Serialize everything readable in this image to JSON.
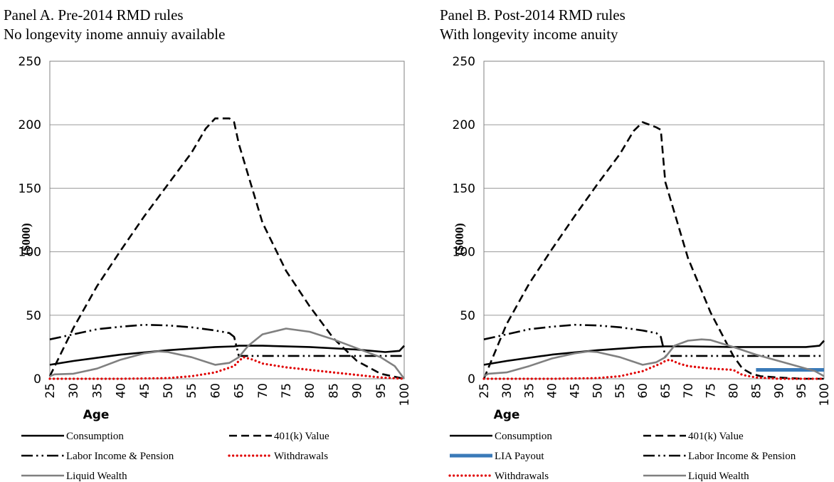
{
  "chart_data": [
    {
      "type": "line",
      "title": "Panel A. Pre-2014 RMD rules",
      "subtitle": "No longevity inome annuiy available",
      "xlabel": "Age",
      "ylabel": "($000)",
      "ylim": [
        0,
        250
      ],
      "yticks": [
        0,
        50,
        100,
        150,
        200,
        250
      ],
      "xlim": [
        25,
        100
      ],
      "xticks": [
        25,
        30,
        35,
        40,
        45,
        50,
        55,
        60,
        65,
        70,
        75,
        80,
        85,
        90,
        95,
        100
      ],
      "grid": true,
      "legend_placement": "bottom",
      "series": [
        {
          "name": "Consumption",
          "color": "#000000",
          "dash": "solid",
          "x": [
            25,
            30,
            40,
            50,
            60,
            64,
            65,
            70,
            80,
            90,
            96,
            99,
            100
          ],
          "y": [
            11,
            14,
            19,
            22.5,
            25,
            25.5,
            26,
            26,
            25,
            23,
            21,
            22,
            26
          ]
        },
        {
          "name": "401(k) Value",
          "color": "#000000",
          "dash": "dashed",
          "x": [
            25,
            30,
            35,
            40,
            45,
            50,
            55,
            58,
            60,
            63,
            64,
            65,
            70,
            75,
            80,
            85,
            90,
            95,
            100
          ],
          "y": [
            2,
            40,
            73,
            101,
            128,
            153,
            178,
            197,
            205,
            205,
            202,
            185,
            123,
            85,
            57,
            32,
            14,
            4,
            0
          ]
        },
        {
          "name": "Labor Income & Pension",
          "color": "#000000",
          "dash": "dashdotdot",
          "x": [
            25,
            30,
            35,
            40,
            45,
            50,
            55,
            60,
            63,
            64,
            65,
            70,
            80,
            90,
            100
          ],
          "y": [
            31,
            35,
            39,
            41,
            42.5,
            42,
            40.5,
            38,
            36,
            33,
            18,
            18,
            18,
            18,
            18
          ]
        },
        {
          "name": "Withdrawals",
          "color": "#e00000",
          "dash": "dotted",
          "x": [
            25,
            40,
            50,
            55,
            60,
            64,
            65,
            66,
            68,
            70,
            75,
            80,
            85,
            90,
            95,
            100
          ],
          "y": [
            0,
            0,
            0.5,
            2,
            5,
            10,
            14,
            17,
            15,
            12,
            9,
            7,
            5,
            3,
            1,
            0
          ]
        },
        {
          "name": "Liquid Wealth",
          "color": "#808080",
          "dash": "solid",
          "x": [
            25,
            26,
            30,
            35,
            40,
            45,
            48,
            50,
            55,
            60,
            63,
            65,
            67,
            70,
            75,
            80,
            85,
            90,
            95,
            98,
            99,
            100
          ],
          "y": [
            2,
            3.5,
            4,
            8,
            15,
            20,
            21.5,
            21,
            17,
            11,
            12.5,
            17,
            26,
            35,
            39.5,
            37,
            31,
            24,
            17,
            10,
            5,
            0
          ]
        }
      ]
    },
    {
      "type": "line",
      "title": "Panel B. Post-2014 RMD rules",
      "subtitle": "With longevity income anuity",
      "xlabel": "Age",
      "ylabel": "($000)",
      "ylim": [
        0,
        250
      ],
      "yticks": [
        0,
        50,
        100,
        150,
        200,
        250
      ],
      "xlim": [
        25,
        100
      ],
      "xticks": [
        25,
        30,
        35,
        40,
        45,
        50,
        55,
        60,
        65,
        70,
        75,
        80,
        85,
        90,
        95,
        100
      ],
      "grid": true,
      "legend_placement": "bottom",
      "series": [
        {
          "name": "Consumption",
          "color": "#000000",
          "dash": "solid",
          "x": [
            25,
            30,
            40,
            50,
            60,
            65,
            70,
            80,
            85,
            90,
            96,
            99,
            100
          ],
          "y": [
            11,
            14,
            19,
            22.5,
            25,
            25.5,
            25.5,
            25,
            25,
            25,
            25,
            26,
            30
          ]
        },
        {
          "name": "401(k) Value",
          "color": "#000000",
          "dash": "dashed",
          "x": [
            25,
            30,
            35,
            40,
            45,
            50,
            55,
            58,
            60,
            63,
            64,
            65,
            70,
            75,
            80,
            82,
            84,
            86,
            90,
            95,
            100
          ],
          "y": [
            0,
            43,
            75,
            102,
            128,
            153,
            177,
            195,
            202,
            198,
            196,
            155,
            95,
            52,
            18,
            8,
            4,
            2,
            1,
            0,
            0
          ]
        },
        {
          "name": "LIA Payout",
          "color": "#3a7ab8",
          "dash": "solid",
          "x": [
            85,
            100
          ],
          "y": [
            7,
            7
          ]
        },
        {
          "name": "Labor Income & Pension",
          "color": "#000000",
          "dash": "dashdotdot",
          "x": [
            25,
            30,
            35,
            40,
            45,
            50,
            55,
            60,
            63,
            64,
            65,
            70,
            80,
            90,
            100
          ],
          "y": [
            31,
            35,
            39,
            41,
            42.5,
            42,
            40.5,
            38,
            36,
            33,
            18,
            18,
            18,
            18,
            18
          ]
        },
        {
          "name": "Withdrawals",
          "color": "#e00000",
          "dash": "dotted",
          "x": [
            25,
            40,
            50,
            55,
            60,
            64,
            65,
            66,
            68,
            70,
            75,
            80,
            82,
            85,
            90,
            95,
            100
          ],
          "y": [
            0,
            0,
            0.5,
            2,
            6,
            12,
            14,
            15,
            12,
            10,
            8,
            7,
            3,
            1,
            0,
            0,
            0
          ]
        },
        {
          "name": "Liquid Wealth",
          "color": "#808080",
          "dash": "solid",
          "x": [
            25,
            26,
            30,
            35,
            40,
            45,
            48,
            50,
            55,
            60,
            63,
            65,
            67,
            70,
            73,
            75,
            80,
            85,
            90,
            95,
            98,
            100
          ],
          "y": [
            2,
            4,
            5,
            10,
            16,
            20,
            21.5,
            21,
            17,
            11,
            13,
            17,
            26,
            30,
            31,
            30.5,
            25,
            19,
            14,
            9,
            6,
            2
          ]
        }
      ]
    }
  ]
}
